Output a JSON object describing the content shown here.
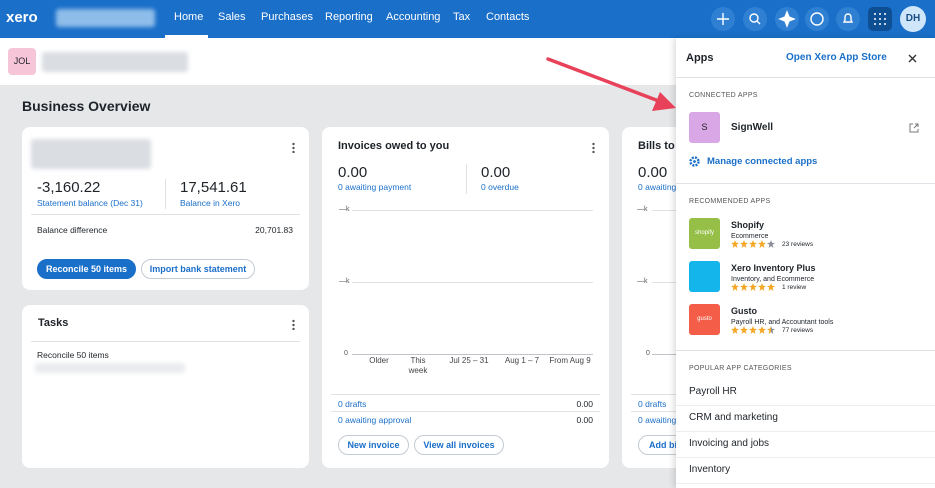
{
  "nav": {
    "logo": "xero",
    "items": [
      "Home",
      "Sales",
      "Purchases",
      "Reporting",
      "Accounting",
      "Tax",
      "Contacts"
    ],
    "avatar": "DH"
  },
  "org": {
    "badge": "JOL"
  },
  "page_title": "Business Overview",
  "bank_card": {
    "statement_value": "-3,160.22",
    "statement_label": "Statement balance (Dec 31)",
    "xero_value": "17,541.61",
    "xero_label": "Balance in Xero",
    "diff_label": "Balance difference",
    "diff_value": "20,701.83",
    "buttons": [
      "Reconcile 50 items",
      "Import bank statement"
    ]
  },
  "tasks": {
    "title": "Tasks",
    "items": [
      "Reconcile 50 items"
    ]
  },
  "invoices": {
    "title": "Invoices owed to you",
    "stats": [
      {
        "value": "0.00",
        "label": "0 awaiting payment"
      },
      {
        "value": "0.00",
        "label": "0 overdue"
      }
    ],
    "chart": {
      "yticks": [
        "—k",
        "—k",
        "0"
      ],
      "categories": [
        "Older",
        "This week",
        "Jul 25 – 31",
        "Aug 1 – 7",
        "From Aug 9"
      ]
    },
    "rows": [
      {
        "label": "0 drafts",
        "value": "0.00"
      },
      {
        "label": "0 awaiting approval",
        "value": "0.00"
      }
    ],
    "buttons": [
      "New invoice",
      "View all invoices"
    ]
  },
  "bills": {
    "title": "Bills to",
    "stats": [
      {
        "value": "0.00",
        "label": "0 awaiting"
      }
    ],
    "chart": {
      "yticks": [
        "—k",
        "—k",
        "0"
      ]
    },
    "rows": [
      "0 drafts",
      "0 awaiting"
    ],
    "buttons": [
      "Add bi"
    ]
  },
  "apps_panel": {
    "title": "Apps",
    "store_link": "Open Xero App Store",
    "connected": {
      "heading": "CONNECTED APPS",
      "apps": [
        {
          "icon": "S",
          "name": "SignWell"
        }
      ],
      "manage": "Manage connected apps"
    },
    "recommended": {
      "heading": "RECOMMENDED APPS",
      "apps": [
        {
          "icon": "shopify",
          "name": "Shopify",
          "description": "Ecommerce",
          "rating": 4,
          "reviews": "23 reviews",
          "color": "#95bf47"
        },
        {
          "icon": "",
          "name": "Xero Inventory Plus",
          "description": "Inventory, and Ecommerce",
          "rating": 5,
          "reviews": "1 review",
          "color": "#13b5ea"
        },
        {
          "icon": "gusto",
          "name": "Gusto",
          "description": "Payroll HR, and Accountant tools",
          "rating": 4.5,
          "reviews": "77 reviews",
          "color": "#f45d48"
        }
      ]
    },
    "popular": {
      "heading": "POPULAR APP CATEGORIES",
      "items": [
        "Payroll HR",
        "CRM and marketing",
        "Invoicing and jobs",
        "Inventory"
      ]
    }
  }
}
